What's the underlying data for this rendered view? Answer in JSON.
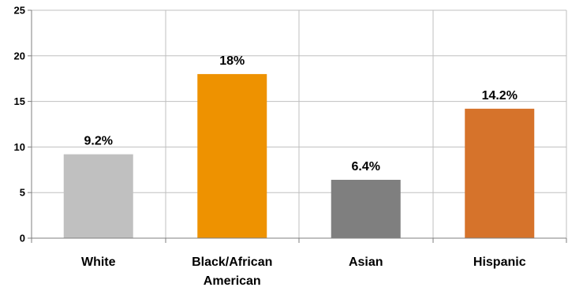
{
  "chart_data": {
    "type": "bar",
    "categories": [
      "White",
      "Black/African American",
      "Asian",
      "Hispanic"
    ],
    "category_lines": [
      [
        "White"
      ],
      [
        "Black/African",
        "American"
      ],
      [
        "Asian"
      ],
      [
        "Hispanic"
      ]
    ],
    "values": [
      9.2,
      18,
      6.4,
      14.2
    ],
    "data_labels": [
      "9.2%",
      "18%",
      "6.4%",
      "14.2%"
    ],
    "bar_colors": [
      "#c0c0c0",
      "#ee9200",
      "#7f7f7f",
      "#d6732b"
    ],
    "ylim": [
      0,
      25
    ],
    "y_ticks": [
      0,
      5,
      10,
      15,
      20,
      25
    ],
    "grid": true,
    "grid_color": "#bfbfbf",
    "axis_color": "#7f7f7f",
    "legend": "none",
    "title": "",
    "xlabel": "",
    "ylabel": ""
  }
}
